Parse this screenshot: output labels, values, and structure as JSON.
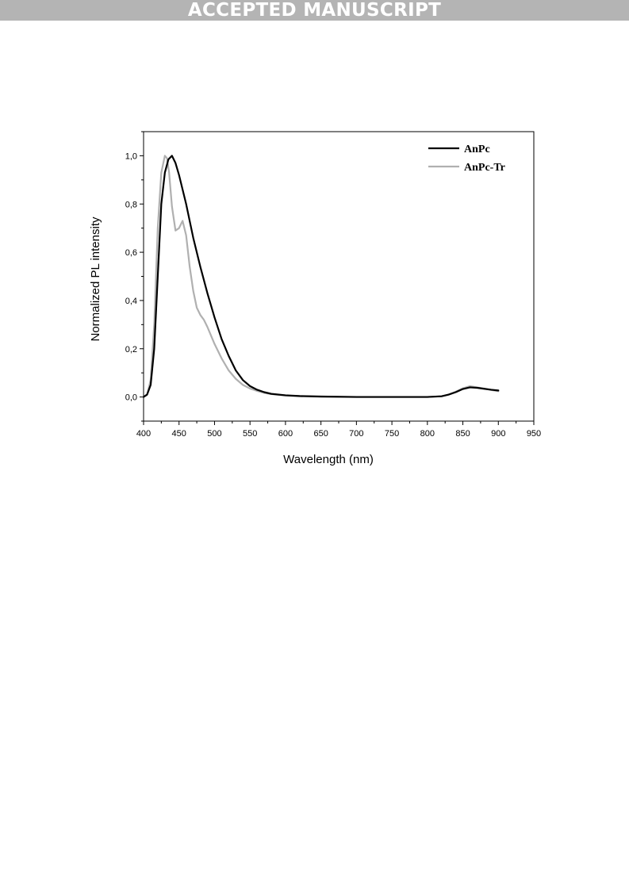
{
  "banner": {
    "text": "ACCEPTED MANUSCRIPT"
  },
  "chart_data": {
    "type": "line",
    "xlabel": "Wavelength (nm)",
    "ylabel": "Normalized PL intensity",
    "xlim": [
      400,
      950
    ],
    "ylim": [
      -0.1,
      1.1
    ],
    "xticks": [
      400,
      450,
      500,
      550,
      600,
      650,
      700,
      750,
      800,
      850,
      900,
      950
    ],
    "yticks": [
      0.0,
      0.2,
      0.4,
      0.6,
      0.8,
      1.0
    ],
    "ytick_labels": [
      "0,0",
      "0,2",
      "0,4",
      "0,6",
      "0,8",
      "1,0"
    ],
    "legend_position": "top-right",
    "grid": false,
    "series": [
      {
        "name": "AnPc",
        "color": "#000000",
        "x": [
          400,
          405,
          410,
          415,
          420,
          425,
          430,
          435,
          440,
          445,
          450,
          455,
          460,
          465,
          470,
          480,
          490,
          500,
          510,
          520,
          530,
          540,
          550,
          560,
          570,
          580,
          600,
          620,
          650,
          700,
          750,
          800,
          820,
          830,
          840,
          850,
          860,
          870,
          880,
          890,
          900
        ],
        "y": [
          0.0,
          0.01,
          0.05,
          0.2,
          0.5,
          0.8,
          0.93,
          0.985,
          1.0,
          0.97,
          0.92,
          0.86,
          0.8,
          0.73,
          0.66,
          0.54,
          0.43,
          0.33,
          0.24,
          0.17,
          0.11,
          0.07,
          0.045,
          0.03,
          0.02,
          0.013,
          0.007,
          0.004,
          0.002,
          0.0,
          0.0,
          0.0,
          0.003,
          0.01,
          0.02,
          0.033,
          0.04,
          0.038,
          0.034,
          0.03,
          0.027
        ]
      },
      {
        "name": "AnPc-Tr",
        "color": "#b0b0b0",
        "x": [
          400,
          405,
          410,
          415,
          420,
          425,
          430,
          433,
          436,
          440,
          445,
          450,
          455,
          460,
          465,
          470,
          475,
          480,
          485,
          490,
          500,
          510,
          520,
          530,
          540,
          550,
          560,
          570,
          580,
          600,
          620,
          650,
          700,
          750,
          800,
          820,
          830,
          840,
          850,
          860,
          870,
          880,
          890,
          900
        ],
        "y": [
          0.0,
          0.01,
          0.07,
          0.3,
          0.7,
          0.93,
          1.0,
          0.99,
          0.93,
          0.79,
          0.69,
          0.7,
          0.73,
          0.67,
          0.54,
          0.44,
          0.37,
          0.34,
          0.32,
          0.29,
          0.22,
          0.16,
          0.11,
          0.075,
          0.05,
          0.035,
          0.025,
          0.017,
          0.012,
          0.006,
          0.003,
          0.001,
          0.0,
          0.0,
          0.0,
          0.003,
          0.01,
          0.022,
          0.036,
          0.045,
          0.04,
          0.035,
          0.029,
          0.024
        ]
      }
    ]
  }
}
